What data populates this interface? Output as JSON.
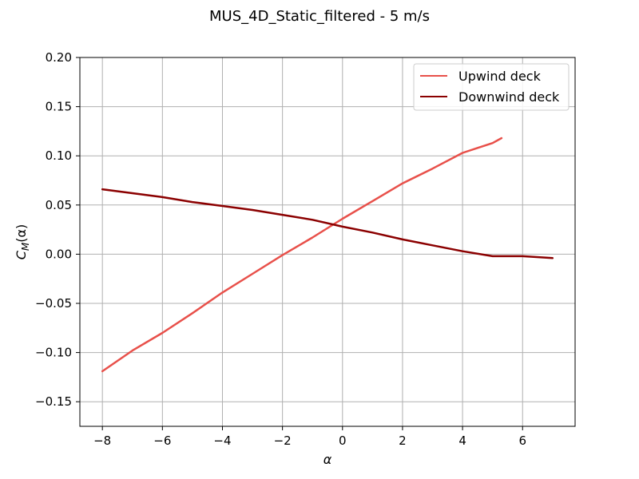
{
  "chart_data": {
    "type": "line",
    "title": "MUS_4D_Static_filtered - 5 m/s",
    "xlabel": "α",
    "ylabel_main": "C",
    "ylabel_sub": "M",
    "ylabel_tail": "(α)",
    "xlim": [
      -8.75,
      7.75
    ],
    "ylim": [
      -0.175,
      0.2
    ],
    "xticks": [
      -8,
      -6,
      -4,
      -2,
      0,
      2,
      4,
      6
    ],
    "xtick_labels": [
      "−8",
      "−6",
      "−4",
      "−2",
      "0",
      "2",
      "4",
      "6"
    ],
    "yticks": [
      -0.15,
      -0.1,
      -0.05,
      0.0,
      0.05,
      0.1,
      0.15,
      0.2
    ],
    "ytick_labels": [
      "−0.15",
      "−0.10",
      "−0.05",
      "0.00",
      "0.05",
      "0.10",
      "0.15",
      "0.20"
    ],
    "grid": true,
    "legend_position": "top-right",
    "series": [
      {
        "name": "Upwind deck",
        "color": "#e8504a",
        "x": [
          -8.0,
          -7.0,
          -6.0,
          -5.0,
          -4.0,
          -3.0,
          -2.0,
          -1.0,
          0.0,
          1.0,
          2.0,
          3.0,
          4.0,
          4.5,
          5.0,
          5.3
        ],
        "y": [
          -0.119,
          -0.098,
          -0.08,
          -0.06,
          -0.039,
          -0.02,
          -0.001,
          0.017,
          0.036,
          0.054,
          0.072,
          0.087,
          0.103,
          0.108,
          0.113,
          0.118
        ]
      },
      {
        "name": "Downwind deck",
        "color": "#8b0000",
        "x": [
          -8.0,
          -7.0,
          -6.0,
          -5.0,
          -4.0,
          -3.0,
          -2.0,
          -1.0,
          0.0,
          1.0,
          2.0,
          3.0,
          4.0,
          5.0,
          6.0,
          7.0
        ],
        "y": [
          0.066,
          0.062,
          0.058,
          0.053,
          0.049,
          0.045,
          0.04,
          0.035,
          0.028,
          0.022,
          0.015,
          0.009,
          0.003,
          -0.002,
          -0.002,
          -0.004
        ]
      }
    ]
  }
}
